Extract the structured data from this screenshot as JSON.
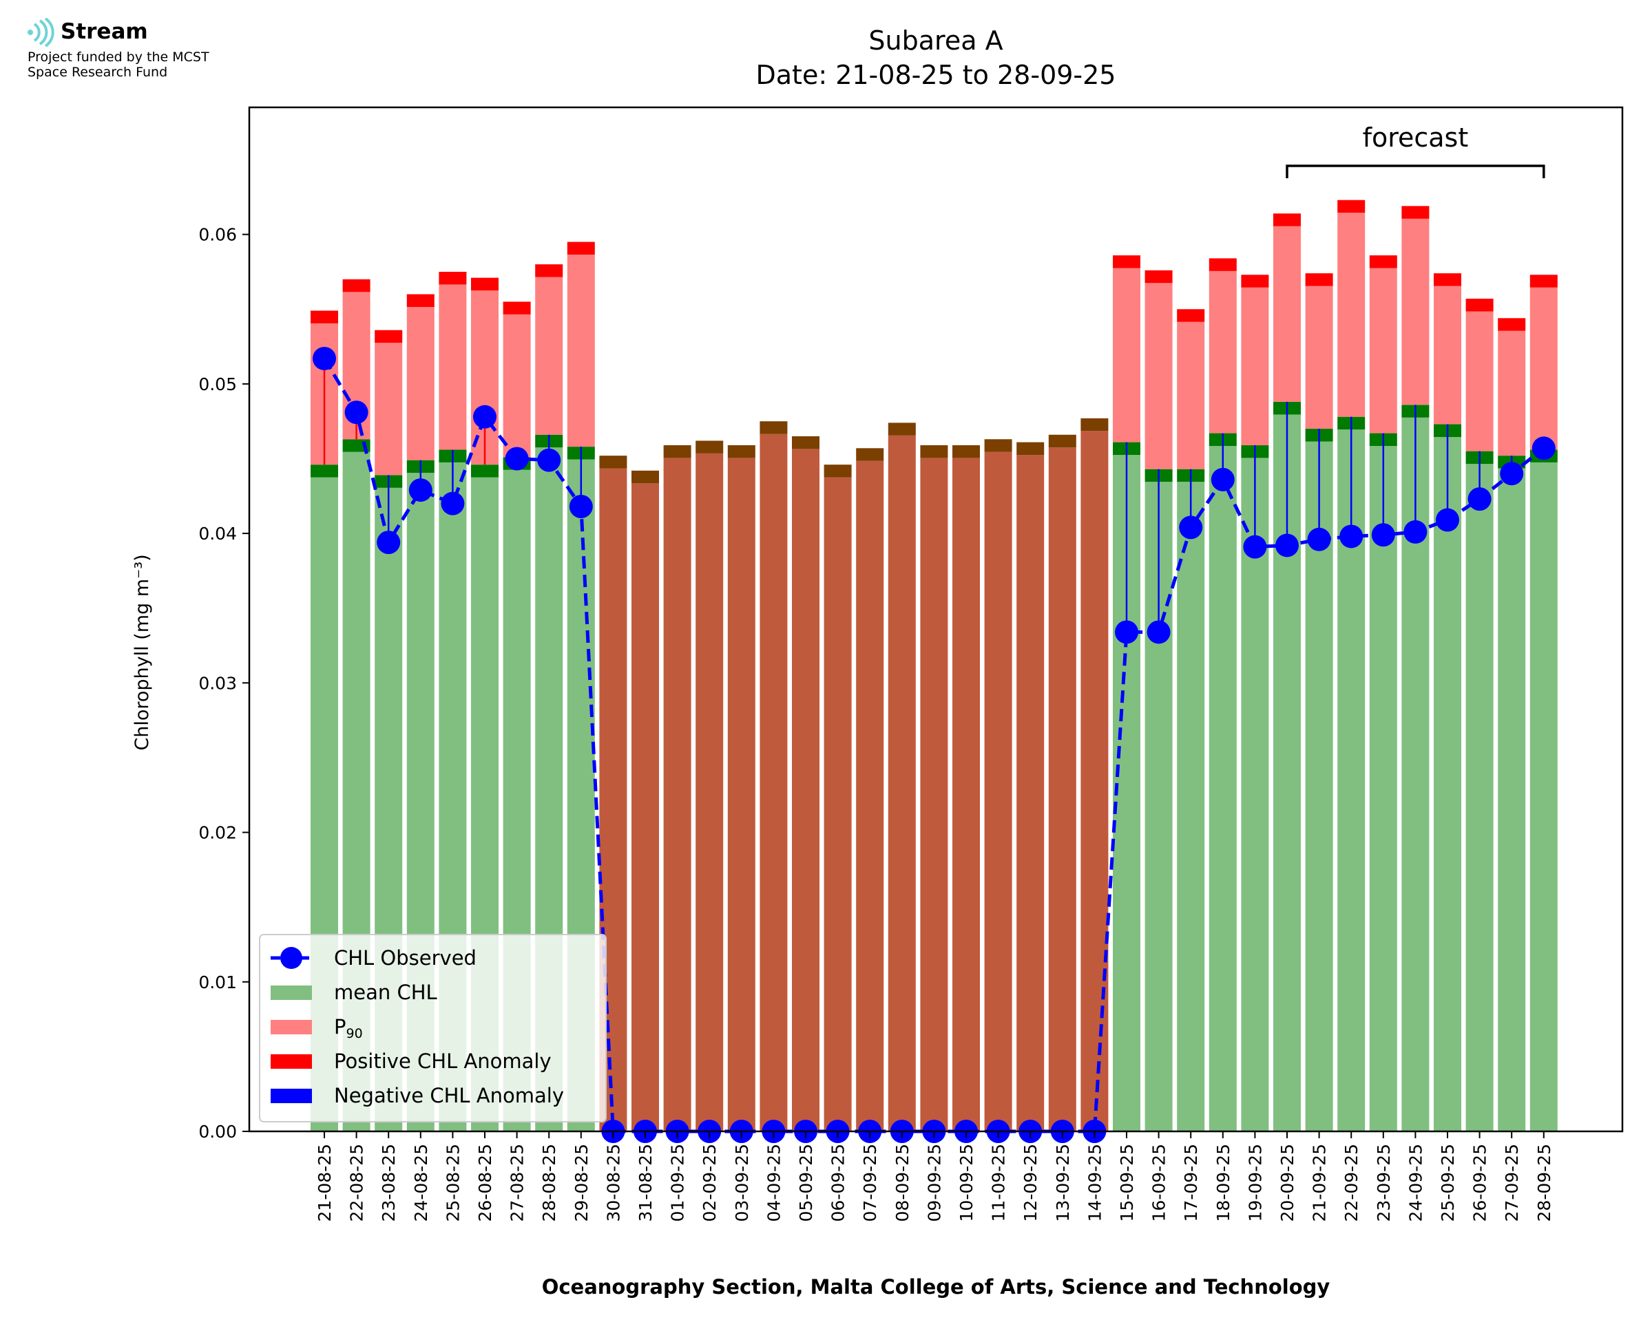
{
  "logo": {
    "name": "Stream",
    "line1": "Project funded by the MCST",
    "line2": "Space Research Fund"
  },
  "colors": {
    "mean": "#80bf80",
    "p90": "#ff8080",
    "positive": "#ff0000",
    "negative": "#0000ff",
    "normal_cap": "#007a00",
    "nodata_bar": "#c05a3c",
    "nodata_cap": "#7b3f00",
    "observed": "#0000ff",
    "logo": "#6fd3d6"
  },
  "chart_data": {
    "type": "bar",
    "title": "Subarea A",
    "subtitle": "Date: 21-08-25 to 28-09-25",
    "xlabel": "Oceanography Section, Malta College of Arts, Science and Technology",
    "ylabel": "Chlorophyll (mg m⁻³)",
    "ylim": [
      0,
      0.0685
    ],
    "yticks": [
      0.0,
      0.01,
      0.02,
      0.03,
      0.04,
      0.05,
      0.06
    ],
    "ytick_labels": [
      "0.00",
      "0.01",
      "0.02",
      "0.03",
      "0.04",
      "0.05",
      "0.06"
    ],
    "categories": [
      "21-08-25",
      "22-08-25",
      "23-08-25",
      "24-08-25",
      "25-08-25",
      "26-08-25",
      "27-08-25",
      "28-08-25",
      "29-08-25",
      "30-08-25",
      "31-08-25",
      "01-09-25",
      "02-09-25",
      "03-09-25",
      "04-09-25",
      "05-09-25",
      "06-09-25",
      "07-09-25",
      "08-09-25",
      "09-09-25",
      "10-09-25",
      "11-09-25",
      "12-09-25",
      "13-09-25",
      "14-09-25",
      "15-09-25",
      "16-09-25",
      "17-09-25",
      "18-09-25",
      "19-09-25",
      "20-09-25",
      "21-09-25",
      "22-09-25",
      "23-09-25",
      "24-09-25",
      "25-09-25",
      "26-09-25",
      "27-09-25",
      "28-09-25"
    ],
    "mean_chl": [
      0.0446,
      0.0463,
      0.0439,
      0.0449,
      0.0456,
      0.0446,
      0.0451,
      0.0466,
      0.0458,
      0.0452,
      0.0442,
      0.0459,
      0.0462,
      0.0459,
      0.0475,
      0.0465,
      0.0446,
      0.0457,
      0.0474,
      0.0459,
      0.0459,
      0.0463,
      0.0461,
      0.0466,
      0.0477,
      0.0461,
      0.0443,
      0.0443,
      0.0467,
      0.0459,
      0.0488,
      0.047,
      0.0478,
      0.0467,
      0.0486,
      0.0473,
      0.0455,
      0.0452,
      0.0456
    ],
    "p90": [
      0.0549,
      0.057,
      0.0536,
      0.056,
      0.0575,
      0.0571,
      0.0555,
      0.058,
      0.0595,
      null,
      null,
      null,
      null,
      null,
      null,
      null,
      null,
      null,
      null,
      null,
      null,
      null,
      null,
      null,
      null,
      0.0586,
      0.0576,
      0.055,
      0.0584,
      0.0573,
      0.0614,
      0.0574,
      0.0623,
      0.0586,
      0.0619,
      0.0574,
      0.0557,
      0.0544,
      0.0573
    ],
    "series": [
      {
        "name": "CHL Observed",
        "values": [
          0.0517,
          0.0481,
          0.0394,
          0.0429,
          0.042,
          0.0478,
          0.045,
          0.0449,
          0.0418,
          0.0,
          0.0,
          0.0,
          0.0,
          0.0,
          0.0,
          0.0,
          0.0,
          0.0,
          0.0,
          0.0,
          0.0,
          0.0,
          0.0,
          0.0,
          0.0,
          0.0334,
          0.0334,
          0.0404,
          0.0436,
          0.0391,
          0.0392,
          0.0396,
          0.0398,
          0.0399,
          0.0401,
          0.0409,
          0.0423,
          0.044,
          0.0457
        ]
      }
    ],
    "legend": {
      "placement": "lower-left",
      "items": [
        {
          "label": "CHL Observed",
          "kind": "line-marker",
          "color": "#0000ff"
        },
        {
          "label": "mean CHL",
          "kind": "patch",
          "color": "#80bf80"
        },
        {
          "label": "P",
          "sub": "90",
          "kind": "patch",
          "color": "#ff8080"
        },
        {
          "label": "Positive CHL Anomaly",
          "kind": "patch",
          "color": "#ff0000"
        },
        {
          "label": "Negative CHL Anomaly",
          "kind": "patch",
          "color": "#0000ff"
        }
      ]
    },
    "annotation": {
      "text": "forecast",
      "from": "20-09-25",
      "to": "28-09-25"
    }
  }
}
